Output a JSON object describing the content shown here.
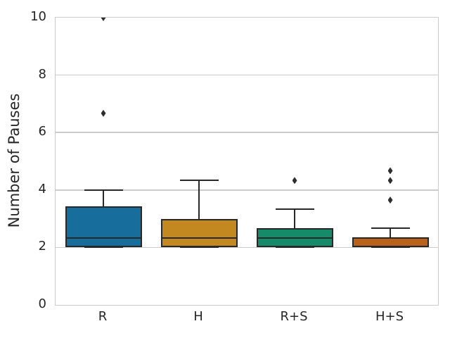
{
  "figure": {
    "background": "#ffffff",
    "spine_color": "#cccccc",
    "grid_color": "#cccccc",
    "text_color": "#262626",
    "box_edge_color": "#282828",
    "outlier_marker": "thin-diamond"
  },
  "chart_data": {
    "type": "boxplot",
    "title": "",
    "xlabel": "",
    "ylabel": "Number of Pauses",
    "ylim": [
      0,
      10
    ],
    "yticks": [
      0,
      2,
      4,
      6,
      8,
      10
    ],
    "grid": "horizontal",
    "legend": "none",
    "categories": [
      "R",
      "H",
      "R+S",
      "H+S"
    ],
    "series": [
      {
        "category": "R",
        "color": "#176D9C",
        "q1": 2.0,
        "median": 2.33,
        "q3": 3.42,
        "whisker_low": 2.0,
        "whisker_high": 4.0,
        "outliers": [
          6.67,
          10.0
        ]
      },
      {
        "category": "H",
        "color": "#C38820",
        "q1": 2.0,
        "median": 2.33,
        "q3": 3.0,
        "whisker_low": 2.0,
        "whisker_high": 4.33,
        "outliers": []
      },
      {
        "category": "R+S",
        "color": "#168B6A",
        "q1": 2.0,
        "median": 2.33,
        "q3": 2.67,
        "whisker_low": 2.0,
        "whisker_high": 3.33,
        "outliers": [
          4.33
        ]
      },
      {
        "category": "H+S",
        "color": "#BA611B",
        "q1": 2.0,
        "median": 2.33,
        "q3": 2.35,
        "whisker_low": 2.0,
        "whisker_high": 2.67,
        "outliers": [
          3.65,
          4.33,
          4.67
        ]
      }
    ]
  }
}
